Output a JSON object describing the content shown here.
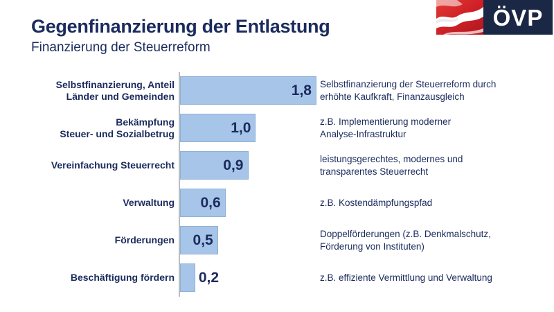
{
  "header": {
    "title": "Gegenfinanzierung der Entlastung",
    "subtitle": "Finanzierung der Steuerreform"
  },
  "logo": {
    "text": "ÖVP",
    "flag": "austrian-flag"
  },
  "colors": {
    "text_navy": "#1b2b5d",
    "logo_navy": "#1a2745",
    "flag_red": "#cf2127",
    "bar_fill": "#a7c5e8",
    "bar_border": "#8fb0d6",
    "axis_gray": "#b9bdc1"
  },
  "chart_data": {
    "type": "bar",
    "orientation": "horizontal",
    "title": "Gegenfinanzierung der Entlastung",
    "subtitle": "Finanzierung der Steuerreform",
    "xlabel": "",
    "ylabel": "",
    "xlim": [
      0,
      1.8
    ],
    "grid": false,
    "legend": false,
    "value_format": "comma-decimal",
    "categories": [
      "Selbstfinanzierung, Anteil Länder und Gemeinden",
      "Bekämpfung Steuer- und Sozialbetrug",
      "Vereinfachung Steuerrecht",
      "Verwaltung",
      "Förderungen",
      "Beschäftigung fördern"
    ],
    "values": [
      1.8,
      1.0,
      0.9,
      0.6,
      0.5,
      0.2
    ],
    "rows": [
      {
        "label": "Selbstfinanzierung, Anteil\nLänder und Gemeinden",
        "value": 1.8,
        "value_label": "1,8",
        "value_label_position": "inside",
        "annotation": "Selbstfinanzierung der Steuerreform durch\nerhöhte Kaufkraft, Finanzausgleich"
      },
      {
        "label": "Bekämpfung\nSteuer- und Sozialbetrug",
        "value": 1.0,
        "value_label": "1,0",
        "value_label_position": "inside",
        "annotation": "z.B. Implementierung moderner\nAnalyse-Infrastruktur"
      },
      {
        "label": "Vereinfachung Steuerrecht",
        "value": 0.9,
        "value_label": "0,9",
        "value_label_position": "inside",
        "annotation": "leistungsgerechtes, modernes und\ntransparentes Steuerrecht"
      },
      {
        "label": "Verwaltung",
        "value": 0.6,
        "value_label": "0,6",
        "value_label_position": "inside",
        "annotation": "z.B. Kostendämpfungspfad"
      },
      {
        "label": "Förderungen",
        "value": 0.5,
        "value_label": "0,5",
        "value_label_position": "inside",
        "annotation": "Doppelförderungen (z.B. Denkmalschutz,\nFörderung von Instituten)"
      },
      {
        "label": "Beschäftigung fördern",
        "value": 0.2,
        "value_label": "0,2",
        "value_label_position": "outside",
        "annotation": "z.B. effiziente Vermittlung und Verwaltung"
      }
    ]
  }
}
